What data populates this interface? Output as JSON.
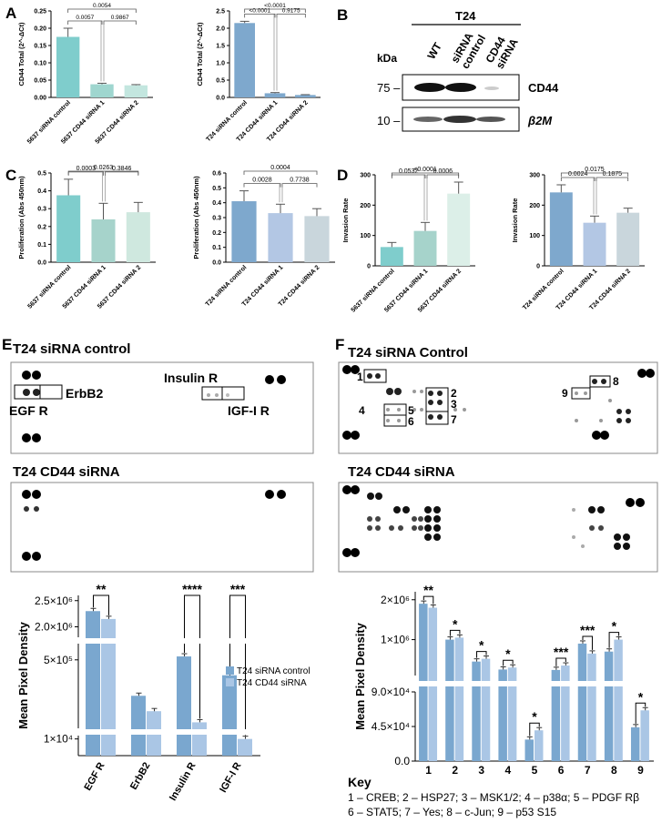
{
  "colors": {
    "teal": "#7fcdcc",
    "teal_light": "#bfe3e0",
    "teal_pale": "#e1f2ee",
    "blue": "#7ea8cd",
    "blue_light": "#b9cfe8",
    "grey_blue": "#c9d6dc",
    "bar_dark": "#7aa7cf",
    "bar_light": "#aac6e5"
  },
  "panels": {
    "A": {
      "letter": "A"
    },
    "B": {
      "letter": "B"
    },
    "C": {
      "letter": "C"
    },
    "D": {
      "letter": "D"
    },
    "E": {
      "letter": "E"
    },
    "F": {
      "letter": "F"
    }
  },
  "blot": {
    "cell_line": "T24",
    "kda_label": "kDa",
    "lanes": [
      "WT",
      "siRNA control",
      "CD44 siRNA"
    ],
    "rows": [
      {
        "marker": "75 –",
        "protein": "CD44"
      },
      {
        "marker": "10 –",
        "protein": "β2M"
      }
    ]
  },
  "arrays": {
    "E": {
      "title_top": "T24 siRNA control",
      "title_bottom": "T24 CD44 siRNA",
      "labels": [
        "ErbB2",
        "EGF R",
        "Insulin R",
        "IGF-I R"
      ]
    },
    "F": {
      "title_top": "T24 siRNA Control",
      "title_bottom": "T24 CD44 siRNA",
      "labels": [
        "1",
        "2",
        "3",
        "4",
        "5",
        "6",
        "7",
        "8",
        "9"
      ]
    }
  },
  "key": {
    "title": "Key",
    "line1": "1 – CREB; 2 – HSP27; 3 – MSK1/2; 4 – p38α; 5 – PDGF Rβ",
    "line2": "6 – STAT5; 7 – Yes; 8 – c-Jun; 9 – p53 S15"
  },
  "chart_data": [
    {
      "id": "A1",
      "type": "bar",
      "ylabel": "CD44 Total (2^-ΔCt)",
      "categories": [
        "5637 siRNA control",
        "5637 CD44 siRNA 1",
        "5637 CD44 siRNA 2"
      ],
      "values": [
        0.175,
        0.038,
        0.035
      ],
      "errors": [
        0.025,
        0.003,
        0.002
      ],
      "ylim": [
        0,
        0.25
      ],
      "yticks": [
        "0.00",
        "0.05",
        "0.10",
        "0.15",
        "0.20",
        "0.25"
      ],
      "pvalues": [
        "0.0054",
        "0.0057",
        "0.9867"
      ]
    },
    {
      "id": "A2",
      "type": "bar",
      "ylabel": "CD44 Total (2^-ΔCt)",
      "categories": [
        "T24 siRNA control",
        "T24 CD44 siRNA 1",
        "T24 CD44 siRNA 2"
      ],
      "values": [
        2.15,
        0.12,
        0.07
      ],
      "errors": [
        0.05,
        0.02,
        0.01
      ],
      "ylim": [
        0,
        2.5
      ],
      "yticks": [
        "0.0",
        "0.5",
        "1.0",
        "1.5",
        "2.0",
        "2.5"
      ],
      "pvalues": [
        "<0.0001",
        "<0.0001",
        "0.9175"
      ]
    },
    {
      "id": "C1",
      "type": "bar",
      "ylabel": "Proliferation (Abs 450nm)",
      "categories": [
        "5637 siRNA control",
        "5637 CD44 siRNA 1",
        "5637 CD44 siRNA 2"
      ],
      "values": [
        0.375,
        0.24,
        0.28
      ],
      "errors": [
        0.09,
        0.09,
        0.055
      ],
      "ylim": [
        0,
        0.5
      ],
      "yticks": [
        "0.0",
        "0.1",
        "0.2",
        "0.3",
        "0.4",
        "0.5"
      ],
      "pvalues": [
        "0.0263",
        "0.0003",
        "0.3846"
      ]
    },
    {
      "id": "C2",
      "type": "bar",
      "ylabel": "Proliferation (Abs 450nm)",
      "categories": [
        "T24 siRNA control",
        "T24 CD44 siRNA 1",
        "T24 CD44 siRNA 2"
      ],
      "values": [
        0.41,
        0.33,
        0.31
      ],
      "errors": [
        0.07,
        0.06,
        0.05
      ],
      "ylim": [
        0,
        0.6
      ],
      "yticks": [
        "0.0",
        "0.1",
        "0.2",
        "0.3",
        "0.4",
        "0.5",
        "0.6"
      ],
      "pvalues": [
        "0.0004",
        "0.0028",
        "0.7738"
      ]
    },
    {
      "id": "D1",
      "type": "bar",
      "ylabel": "Invasion Rate",
      "categories": [
        "5637 siRNA control",
        "5637 CD44 siRNA 1",
        "5637 CD44 siRNA 2"
      ],
      "values": [
        62,
        115,
        238
      ],
      "errors": [
        15,
        28,
        38
      ],
      "ylim": [
        0,
        300
      ],
      "yticks": [
        "0",
        "100",
        "200",
        "300"
      ],
      "pvalues": [
        "<0.0001",
        "0.0532",
        "0.0006"
      ]
    },
    {
      "id": "D2",
      "type": "bar",
      "ylabel": "Invasion Rate",
      "categories": [
        "T24 siRNA control",
        "T24 CD44 siRNA 1",
        "T24 CD44 siRNA 2"
      ],
      "values": [
        242,
        142,
        175
      ],
      "errors": [
        25,
        22,
        15
      ],
      "ylim": [
        0,
        300
      ],
      "yticks": [
        "0",
        "100",
        "200",
        "300"
      ],
      "pvalues": [
        "0.0175",
        "0.0024",
        "0.1875"
      ]
    },
    {
      "id": "E",
      "type": "bar",
      "ylabel": "Mean Pixel Density",
      "categories": [
        "EGF R",
        "ErbB2",
        "Insulin R",
        "IGF-I R"
      ],
      "series": [
        {
          "name": "T24 siRNA control",
          "values": [
            2300000,
            290000,
            520000,
            410000
          ]
        },
        {
          "name": "T24 CD44 siRNA",
          "values": [
            2150000,
            200000,
            135000,
            10000
          ]
        }
      ],
      "yticks": [
        "1×10⁴",
        "5×10⁵",
        "2.0×10⁶",
        "2.5×10⁶"
      ],
      "legend": "right",
      "significance": [
        "**",
        "",
        "****",
        "***"
      ]
    },
    {
      "id": "F",
      "type": "bar",
      "ylabel": "Mean Pixel Density",
      "categories": [
        "1",
        "2",
        "3",
        "4",
        "5",
        "6",
        "7",
        "8",
        "9"
      ],
      "series": [
        {
          "name": "T24 siRNA Control",
          "values": [
            1900000,
            1000000,
            450000,
            250000,
            28000,
            240000,
            900000,
            700000,
            44000
          ]
        },
        {
          "name": "T24 CD44 siRNA",
          "values": [
            1800000,
            1050000,
            520000,
            300000,
            40000,
            350000,
            650000,
            1000000,
            66000
          ]
        }
      ],
      "yticks": [
        "0.0",
        "4.5×10⁴",
        "9.0×10⁴",
        "1×10⁶",
        "2×10⁶"
      ],
      "significance": [
        "**",
        "*",
        "*",
        "*",
        "*",
        "***",
        "***",
        "*",
        "*"
      ]
    }
  ]
}
